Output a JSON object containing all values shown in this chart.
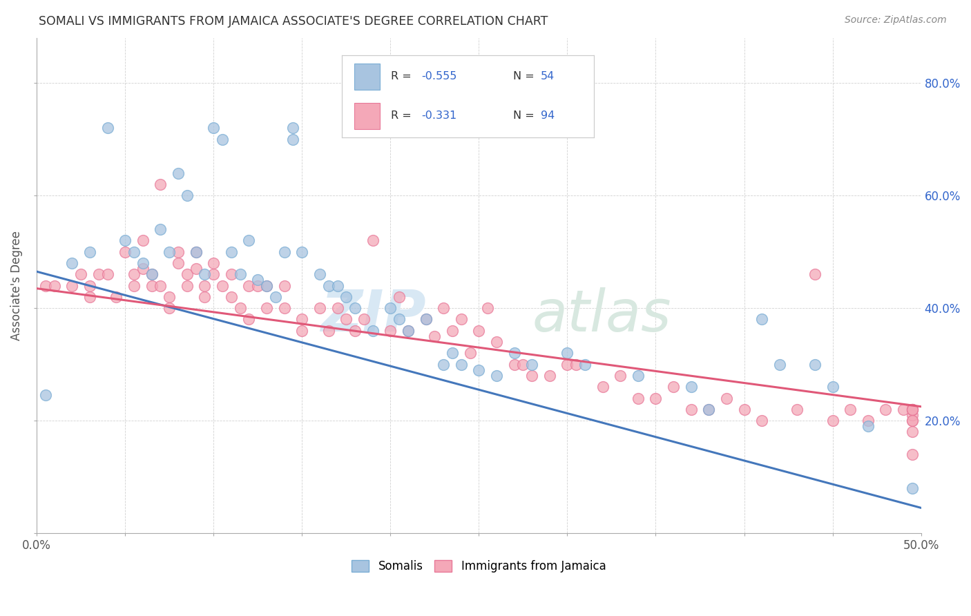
{
  "title": "SOMALI VS IMMIGRANTS FROM JAMAICA ASSOCIATE'S DEGREE CORRELATION CHART",
  "source": "Source: ZipAtlas.com",
  "ylabel": "Associate's Degree",
  "xlim": [
    0.0,
    0.5
  ],
  "ylim": [
    0.0,
    0.88
  ],
  "blue_color": "#a8c4e0",
  "pink_color": "#f4a8b8",
  "blue_edge": "#7aadd4",
  "pink_edge": "#e87898",
  "line_blue": "#4477bb",
  "line_pink": "#e05878",
  "text_blue": "#3366cc",
  "watermark_zip_color": "#d8e8f4",
  "watermark_atlas_color": "#d8e8e0",
  "legend_r_color": "#333333",
  "legend_val_color": "#3366cc",
  "blue_line_start_y": 0.465,
  "blue_line_end_y": 0.045,
  "pink_line_start_y": 0.435,
  "pink_line_end_y": 0.225,
  "blue_x": [
    0.005,
    0.02,
    0.03,
    0.04,
    0.05,
    0.055,
    0.06,
    0.065,
    0.07,
    0.075,
    0.08,
    0.085,
    0.09,
    0.095,
    0.1,
    0.105,
    0.11,
    0.115,
    0.12,
    0.125,
    0.13,
    0.135,
    0.14,
    0.145,
    0.145,
    0.15,
    0.16,
    0.165,
    0.17,
    0.175,
    0.18,
    0.19,
    0.2,
    0.205,
    0.21,
    0.22,
    0.23,
    0.235,
    0.24,
    0.25,
    0.26,
    0.27,
    0.28,
    0.3,
    0.31,
    0.34,
    0.37,
    0.38,
    0.41,
    0.42,
    0.44,
    0.45,
    0.47,
    0.495
  ],
  "blue_y": [
    0.245,
    0.48,
    0.5,
    0.72,
    0.52,
    0.5,
    0.48,
    0.46,
    0.54,
    0.5,
    0.64,
    0.6,
    0.5,
    0.46,
    0.72,
    0.7,
    0.5,
    0.46,
    0.52,
    0.45,
    0.44,
    0.42,
    0.5,
    0.72,
    0.7,
    0.5,
    0.46,
    0.44,
    0.44,
    0.42,
    0.4,
    0.36,
    0.4,
    0.38,
    0.36,
    0.38,
    0.3,
    0.32,
    0.3,
    0.29,
    0.28,
    0.32,
    0.3,
    0.32,
    0.3,
    0.28,
    0.26,
    0.22,
    0.38,
    0.3,
    0.3,
    0.26,
    0.19,
    0.08
  ],
  "pink_x": [
    0.005,
    0.01,
    0.02,
    0.025,
    0.03,
    0.03,
    0.035,
    0.04,
    0.045,
    0.05,
    0.055,
    0.055,
    0.06,
    0.06,
    0.065,
    0.065,
    0.07,
    0.07,
    0.075,
    0.075,
    0.08,
    0.08,
    0.085,
    0.085,
    0.09,
    0.09,
    0.095,
    0.095,
    0.1,
    0.1,
    0.105,
    0.11,
    0.11,
    0.115,
    0.12,
    0.12,
    0.125,
    0.13,
    0.13,
    0.14,
    0.14,
    0.15,
    0.15,
    0.16,
    0.165,
    0.17,
    0.175,
    0.18,
    0.185,
    0.19,
    0.2,
    0.205,
    0.21,
    0.22,
    0.225,
    0.23,
    0.235,
    0.24,
    0.245,
    0.25,
    0.255,
    0.26,
    0.27,
    0.275,
    0.28,
    0.29,
    0.3,
    0.305,
    0.32,
    0.33,
    0.34,
    0.35,
    0.36,
    0.37,
    0.38,
    0.39,
    0.4,
    0.41,
    0.43,
    0.44,
    0.45,
    0.46,
    0.47,
    0.48,
    0.49,
    0.495,
    0.495,
    0.495,
    0.495,
    0.495,
    0.495,
    0.495,
    0.495,
    0.495
  ],
  "pink_y": [
    0.44,
    0.44,
    0.44,
    0.46,
    0.44,
    0.42,
    0.46,
    0.46,
    0.42,
    0.5,
    0.46,
    0.44,
    0.52,
    0.47,
    0.46,
    0.44,
    0.62,
    0.44,
    0.42,
    0.4,
    0.5,
    0.48,
    0.46,
    0.44,
    0.5,
    0.47,
    0.44,
    0.42,
    0.48,
    0.46,
    0.44,
    0.46,
    0.42,
    0.4,
    0.44,
    0.38,
    0.44,
    0.44,
    0.4,
    0.44,
    0.4,
    0.38,
    0.36,
    0.4,
    0.36,
    0.4,
    0.38,
    0.36,
    0.38,
    0.52,
    0.36,
    0.42,
    0.36,
    0.38,
    0.35,
    0.4,
    0.36,
    0.38,
    0.32,
    0.36,
    0.4,
    0.34,
    0.3,
    0.3,
    0.28,
    0.28,
    0.3,
    0.3,
    0.26,
    0.28,
    0.24,
    0.24,
    0.26,
    0.22,
    0.22,
    0.24,
    0.22,
    0.2,
    0.22,
    0.46,
    0.2,
    0.22,
    0.2,
    0.22,
    0.22,
    0.22,
    0.2,
    0.21,
    0.22,
    0.18,
    0.22,
    0.2,
    0.22,
    0.14
  ]
}
